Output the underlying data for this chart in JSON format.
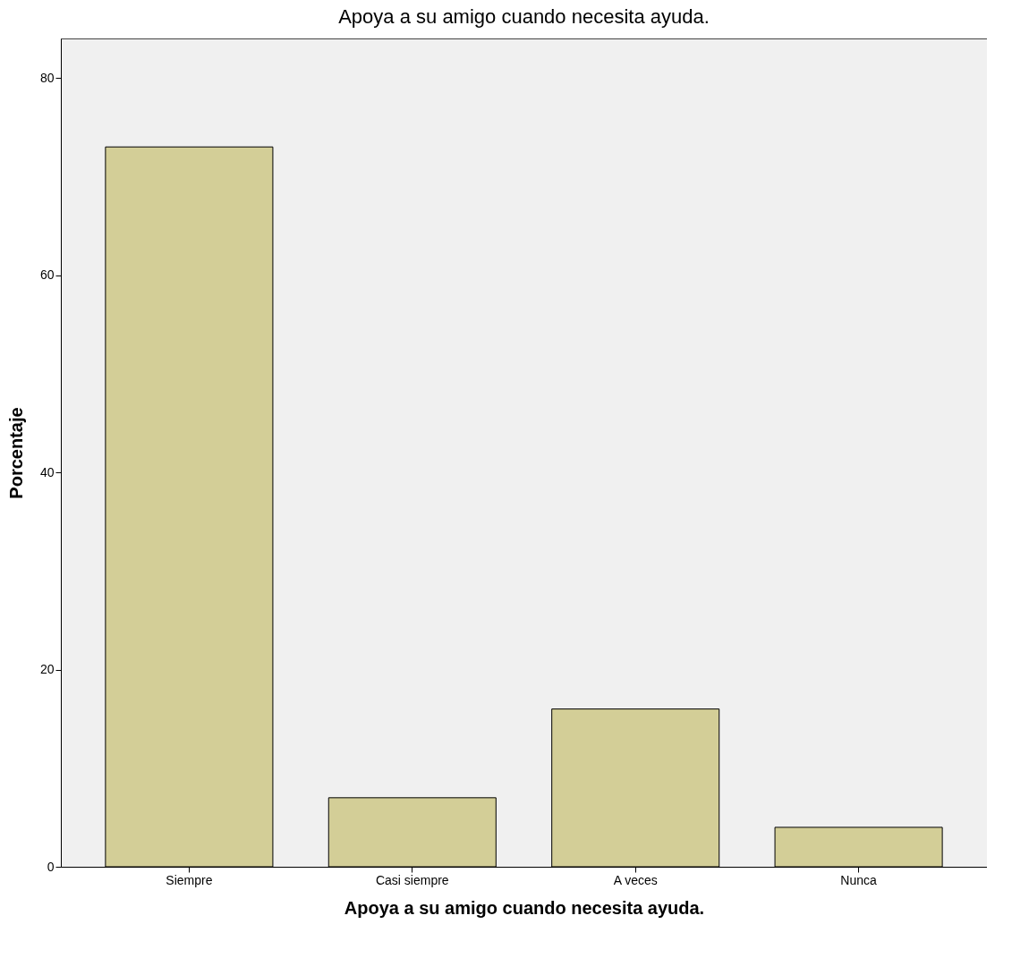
{
  "chart_data": {
    "type": "bar",
    "title": "Apoya a su amigo cuando necesita ayuda.",
    "xlabel": "Apoya a su amigo cuando necesita ayuda.",
    "ylabel": "Porcentaje",
    "categories": [
      "Siempre",
      "Casi siempre",
      "A veces",
      "Nunca"
    ],
    "values": [
      73,
      7,
      16,
      4
    ],
    "color": "#d3ce97",
    "ylim": [
      0,
      84
    ],
    "yticks": [
      0,
      20,
      40,
      60,
      80
    ],
    "grid": false
  }
}
